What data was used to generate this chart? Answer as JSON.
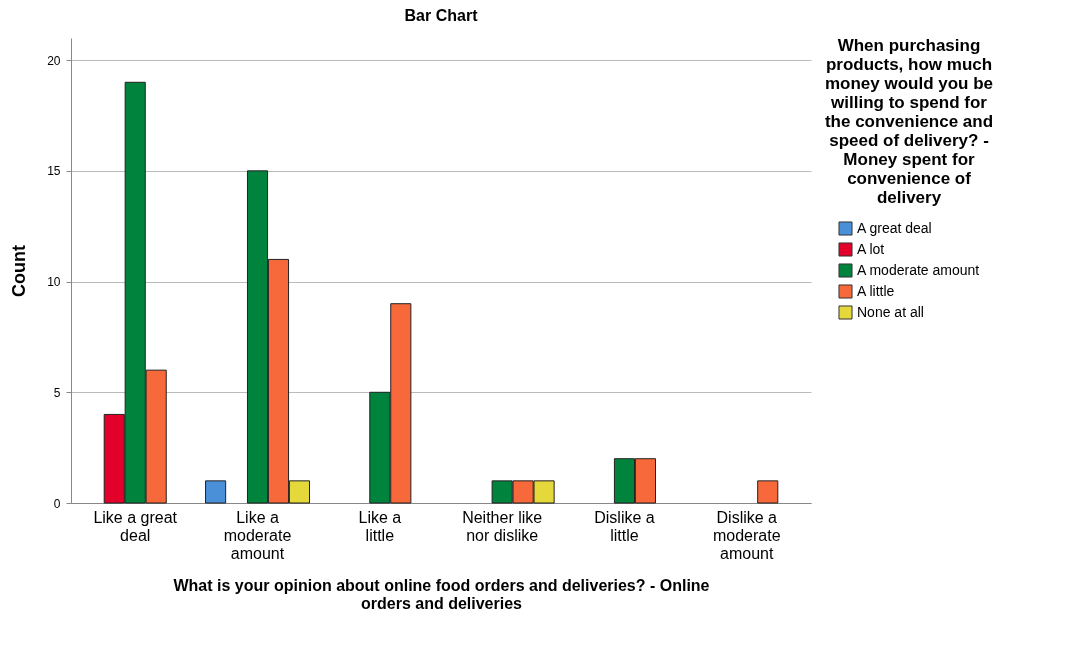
{
  "chart_data": {
    "type": "bar",
    "title": "Bar Chart",
    "xlabel": "What is your opinion about online food orders and deliveries? - Online orders and deliveries",
    "ylabel": "Count",
    "legend_title": "When purchasing products, how much money would you be willing to spend for the convenience and speed of delivery? - Money spent for convenience of delivery",
    "categories": [
      "Like a great deal",
      "Like a moderate amount",
      "Like a little",
      "Neither like nor dislike",
      "Dislike a little",
      "Dislike a moderate amount"
    ],
    "series": [
      {
        "name": "A great deal",
        "color": "#4a90d9",
        "values": [
          null,
          1,
          null,
          null,
          null,
          null
        ]
      },
      {
        "name": "A lot",
        "color": "#e3002b",
        "values": [
          4,
          null,
          null,
          null,
          null,
          null
        ]
      },
      {
        "name": "A moderate amount",
        "color": "#00843d",
        "values": [
          19,
          15,
          5,
          1,
          2,
          null
        ]
      },
      {
        "name": "A little",
        "color": "#f7693a",
        "values": [
          6,
          11,
          9,
          1,
          2,
          1
        ]
      },
      {
        "name": "None at all",
        "color": "#e5d83b",
        "values": [
          null,
          1,
          null,
          1,
          null,
          null
        ]
      }
    ],
    "ylim": [
      0,
      21
    ],
    "yticks": [
      0,
      5,
      10,
      15,
      20
    ],
    "grid": "y",
    "legend": "right"
  }
}
